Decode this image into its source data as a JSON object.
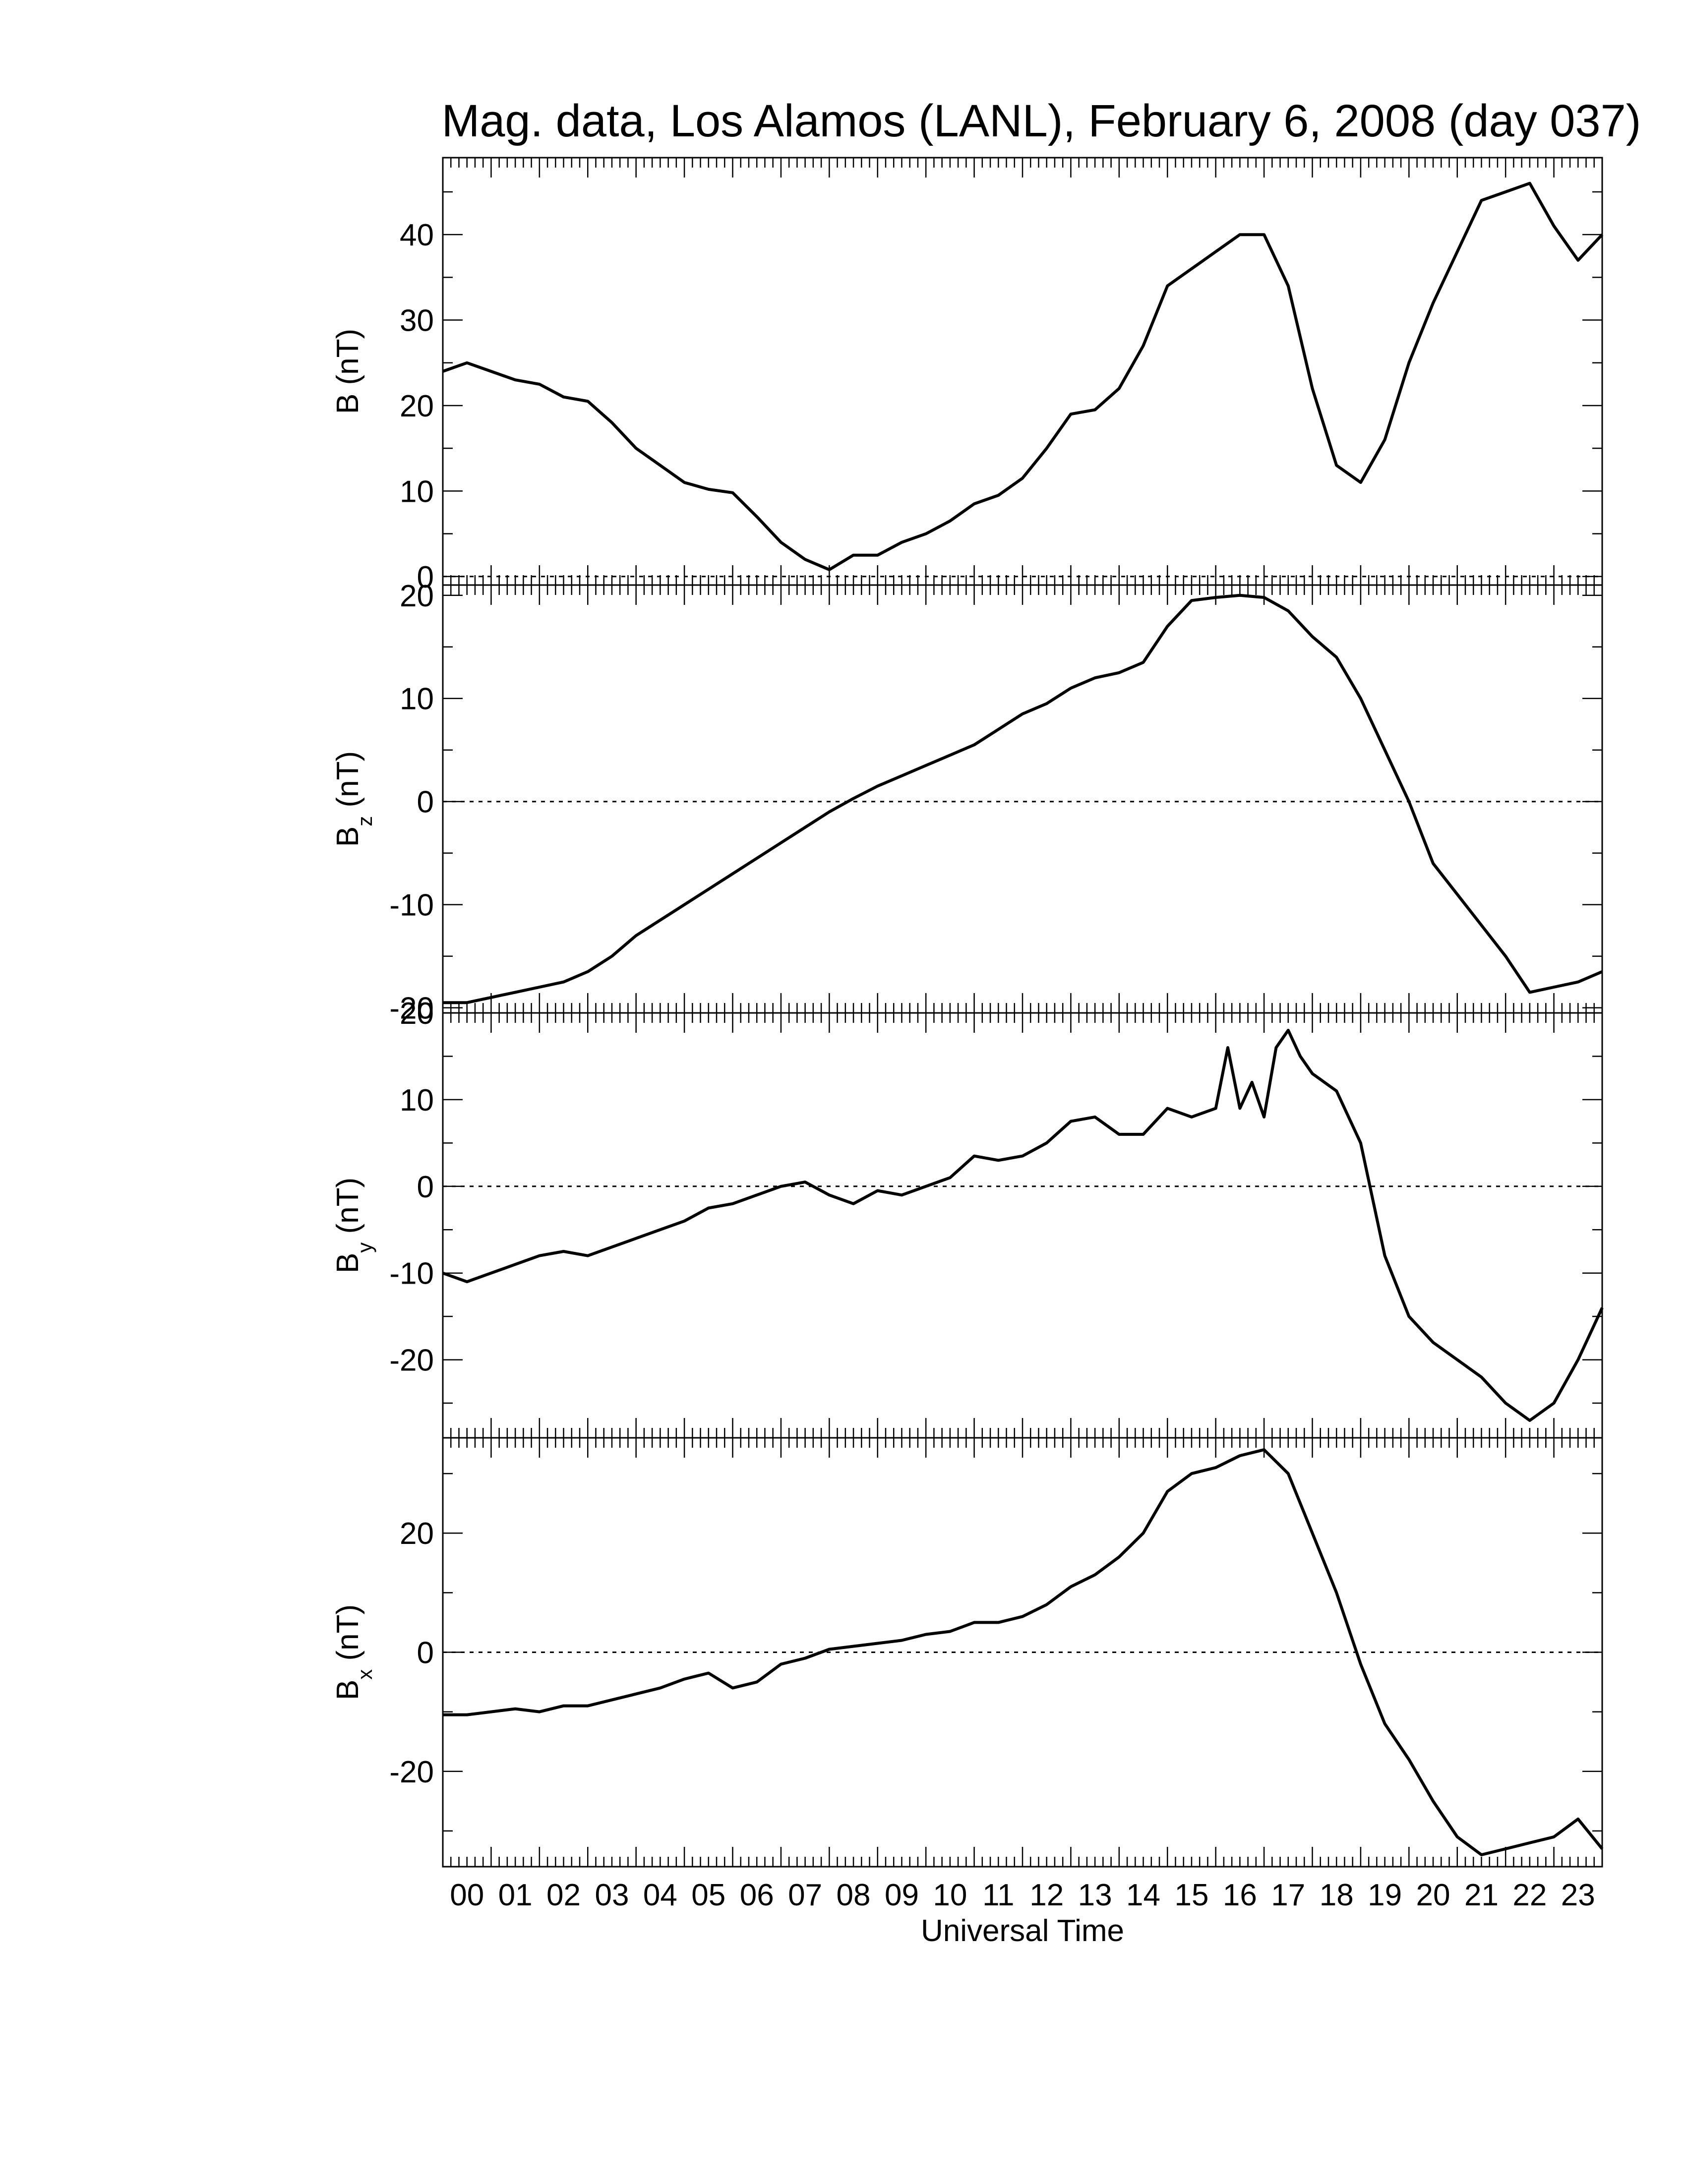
{
  "chart_data": {
    "title": "Mag. data, Los Alamos (LANL), February 6, 2008 (day 037)",
    "type": "line",
    "xlabel": "Universal Time",
    "xlim": [
      0,
      24
    ],
    "x_tick_labels": [
      "00",
      "01",
      "02",
      "03",
      "04",
      "05",
      "06",
      "07",
      "08",
      "09",
      "10",
      "11",
      "12",
      "13",
      "14",
      "15",
      "16",
      "17",
      "18",
      "19",
      "20",
      "21",
      "22",
      "23"
    ],
    "line_color": "#000000",
    "panels": [
      {
        "ylabel_main": "B",
        "ylabel_sub": "",
        "ylabel_unit": "(nT)",
        "ylim": [
          -1,
          49
        ],
        "yticks": [
          0,
          10,
          20,
          30,
          40
        ],
        "zero_line": true,
        "series": {
          "x": [
            0,
            0.5,
            1,
            1.5,
            2,
            2.5,
            3,
            3.5,
            4,
            4.5,
            5,
            5.5,
            6,
            6.5,
            7,
            7.5,
            8,
            8.5,
            9,
            9.5,
            10,
            10.5,
            11,
            11.5,
            12,
            12.5,
            13,
            13.5,
            14,
            14.5,
            15,
            15.5,
            16,
            16.5,
            17,
            17.5,
            18,
            18.5,
            19,
            19.5,
            20,
            20.5,
            21,
            21.5,
            22,
            22.5,
            23,
            23.5,
            24
          ],
          "y": [
            24,
            25,
            24,
            23,
            22.5,
            21,
            20.5,
            18,
            15,
            13,
            11,
            10.2,
            9.8,
            7,
            4,
            2,
            0.8,
            2.5,
            2.5,
            4,
            5,
            6.5,
            8.5,
            9.5,
            11.5,
            15,
            19,
            19.5,
            22,
            27,
            34,
            36,
            38,
            40,
            40,
            34,
            22,
            13,
            11,
            16,
            25,
            32,
            38,
            44,
            45,
            46,
            41,
            37,
            40
          ]
        }
      },
      {
        "ylabel_main": "B",
        "ylabel_sub": "z",
        "ylabel_unit": "(nT)",
        "ylim": [
          -20.5,
          21
        ],
        "yticks": [
          -20,
          -10,
          0,
          10,
          20
        ],
        "zero_line": true,
        "series": {
          "x": [
            0,
            0.5,
            1,
            1.5,
            2,
            2.5,
            3,
            3.5,
            4,
            4.5,
            5,
            5.5,
            6,
            6.5,
            7,
            7.5,
            8,
            8.5,
            9,
            9.5,
            10,
            10.5,
            11,
            11.5,
            12,
            12.5,
            13,
            13.5,
            14,
            14.5,
            15,
            15.5,
            16,
            16.5,
            17,
            17.5,
            18,
            18.5,
            19,
            19.5,
            20,
            20.5,
            21,
            21.5,
            22,
            22.5,
            23,
            23.5,
            24
          ],
          "y": [
            -19.5,
            -19.5,
            -19,
            -18.5,
            -18,
            -17.5,
            -16.5,
            -15,
            -13,
            -11.5,
            -10,
            -8.5,
            -7,
            -5.5,
            -4,
            -2.5,
            -1,
            0.3,
            1.5,
            2.5,
            3.5,
            4.5,
            5.5,
            7,
            8.5,
            9.5,
            11,
            12,
            12.5,
            13.5,
            17,
            19.5,
            19.8,
            20,
            19.8,
            18.5,
            16,
            14,
            10,
            5,
            0,
            -6,
            -9,
            -12,
            -15,
            -18.5,
            -18,
            -17.5,
            -16.5
          ]
        }
      },
      {
        "ylabel_main": "B",
        "ylabel_sub": "y",
        "ylabel_unit": "(nT)",
        "ylim": [
          -29,
          20
        ],
        "yticks": [
          -20,
          -10,
          0,
          10,
          20
        ],
        "zero_line": true,
        "series": {
          "x": [
            0,
            0.5,
            1,
            1.5,
            2,
            2.5,
            3,
            3.5,
            4,
            4.5,
            5,
            5.5,
            6,
            6.5,
            7,
            7.5,
            8,
            8.5,
            9,
            9.5,
            10,
            10.5,
            11,
            11.5,
            12,
            12.5,
            13,
            13.5,
            14,
            14.5,
            15,
            15.5,
            16,
            16.25,
            16.5,
            16.75,
            17,
            17.25,
            17.5,
            17.75,
            18,
            18.5,
            19,
            19.5,
            20,
            20.5,
            21,
            21.5,
            22,
            22.5,
            23,
            23.5,
            24
          ],
          "y": [
            -10,
            -11,
            -10,
            -9,
            -8,
            -7.5,
            -8,
            -7,
            -6,
            -5,
            -4,
            -2.5,
            -2,
            -1,
            0,
            0.5,
            -1,
            -2,
            -0.5,
            -1,
            0,
            1,
            3.5,
            3,
            3.5,
            5,
            7.5,
            8,
            6,
            6,
            9,
            8,
            9,
            16,
            9,
            12,
            8,
            16,
            18,
            15,
            13,
            11,
            5,
            -8,
            -15,
            -18,
            -20,
            -22,
            -25,
            -27,
            -25,
            -20,
            -14
          ]
        }
      },
      {
        "ylabel_main": "B",
        "ylabel_sub": "x",
        "ylabel_unit": "(nT)",
        "ylim": [
          -36,
          36
        ],
        "yticks": [
          -20,
          0,
          20
        ],
        "zero_line": true,
        "series": {
          "x": [
            0,
            0.5,
            1,
            1.5,
            2,
            2.5,
            3,
            3.5,
            4,
            4.5,
            5,
            5.5,
            6,
            6.5,
            7,
            7.5,
            8,
            8.5,
            9,
            9.5,
            10,
            10.5,
            11,
            11.5,
            12,
            12.5,
            13,
            13.5,
            14,
            14.5,
            15,
            15.5,
            16,
            16.5,
            17,
            17.5,
            18,
            18.5,
            19,
            19.5,
            20,
            20.5,
            21,
            21.5,
            22,
            22.5,
            23,
            23.5,
            24
          ],
          "y": [
            -10.5,
            -10.5,
            -10,
            -9.5,
            -10,
            -9,
            -9,
            -8,
            -7,
            -6,
            -4.5,
            -3.5,
            -6,
            -5,
            -2,
            -1,
            0.5,
            1,
            1.5,
            2,
            3,
            3.5,
            5,
            5,
            6,
            8,
            11,
            13,
            16,
            20,
            27,
            30,
            31,
            33,
            34,
            30,
            20,
            10,
            -2,
            -12,
            -18,
            -25,
            -31,
            -34,
            -33,
            -32,
            -31,
            -28,
            -33
          ]
        }
      }
    ]
  }
}
